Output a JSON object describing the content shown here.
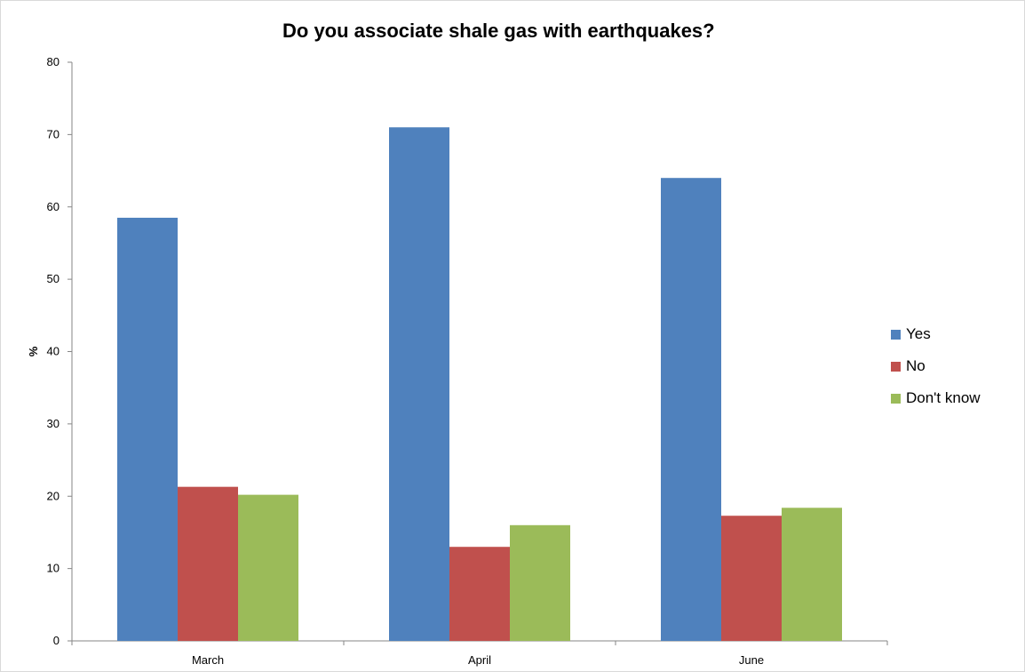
{
  "chart_data": {
    "type": "bar",
    "title": "Do you associate shale gas with earthquakes?",
    "xlabel": "",
    "ylabel": "%",
    "ylim": [
      0,
      80
    ],
    "yticks": [
      0,
      10,
      20,
      30,
      40,
      50,
      60,
      70,
      80
    ],
    "categories": [
      "March",
      "April",
      "June"
    ],
    "series": [
      {
        "name": "Yes",
        "color": "#4f81bd",
        "values": [
          58.5,
          71,
          64
        ]
      },
      {
        "name": "No",
        "color": "#c0504d",
        "values": [
          21.3,
          13,
          17.3
        ]
      },
      {
        "name": "Don't know",
        "color": "#9bbb59",
        "values": [
          20.2,
          16,
          18.4
        ]
      }
    ],
    "legend_position": "right",
    "grid": false
  }
}
